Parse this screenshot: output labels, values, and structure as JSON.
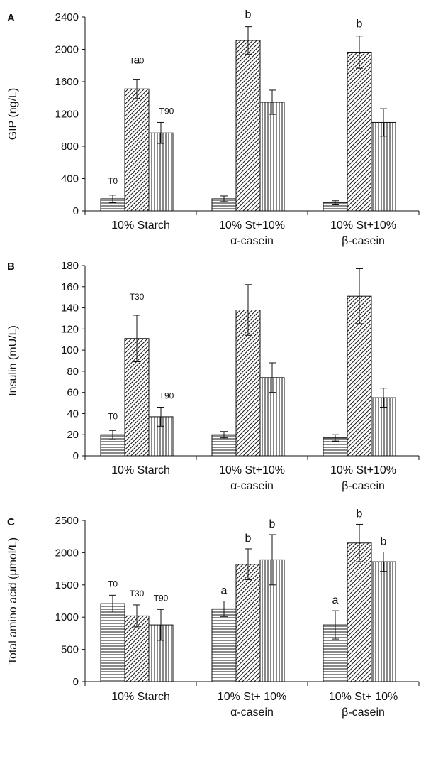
{
  "chart_data": [
    {
      "panel": "A",
      "type": "bar",
      "ylabel": "GIP (ng/L)",
      "ylim": [
        0,
        2400
      ],
      "yticks": [
        0,
        400,
        800,
        1200,
        1600,
        2000,
        2400
      ],
      "categories": [
        [
          "10% Starch"
        ],
        [
          "10% St+10%",
          "α-casein"
        ],
        [
          "10% St+10%",
          "β-casein"
        ]
      ],
      "series": [
        {
          "name": "T0",
          "values": [
            150,
            150,
            100
          ],
          "errors": [
            45,
            35,
            25
          ],
          "pattern": "horizontal"
        },
        {
          "name": "T30",
          "values": [
            1510,
            2110,
            1965
          ],
          "errors": [
            120,
            170,
            200
          ],
          "pattern": "diagonal"
        },
        {
          "name": "T90",
          "values": [
            965,
            1345,
            1095
          ],
          "errors": [
            130,
            150,
            170
          ],
          "pattern": "vertical"
        }
      ],
      "annotations": [
        {
          "category": 0,
          "series": 1,
          "text": "a"
        },
        {
          "category": 1,
          "series": 1,
          "text": "b"
        },
        {
          "category": 2,
          "series": 1,
          "text": "b"
        }
      ],
      "series_labels_category": 0
    },
    {
      "panel": "B",
      "type": "bar",
      "ylabel": "Insulin (mU/L)",
      "ylim": [
        0,
        180
      ],
      "yticks": [
        0,
        20,
        40,
        60,
        80,
        100,
        120,
        140,
        160,
        180
      ],
      "categories": [
        [
          "10% Starch"
        ],
        [
          "10% St+10%",
          "α-casein"
        ],
        [
          "10% St+10%",
          "β-casein"
        ]
      ],
      "series": [
        {
          "name": "T0",
          "values": [
            20,
            20,
            17
          ],
          "errors": [
            4,
            3,
            3
          ],
          "pattern": "horizontal"
        },
        {
          "name": "T30",
          "values": [
            111,
            138,
            151
          ],
          "errors": [
            22,
            24,
            26
          ],
          "pattern": "diagonal"
        },
        {
          "name": "T90",
          "values": [
            37,
            74,
            55
          ],
          "errors": [
            9,
            14,
            9
          ],
          "pattern": "vertical"
        }
      ],
      "annotations": [],
      "series_labels_category": 0
    },
    {
      "panel": "C",
      "type": "bar",
      "ylabel": "Total amino acid (μmol/L)",
      "ylim": [
        0,
        2500
      ],
      "yticks": [
        0,
        500,
        1000,
        1500,
        2000,
        2500
      ],
      "categories": [
        [
          "10% Starch"
        ],
        [
          "10% St+ 10%",
          "α-casein"
        ],
        [
          "10% St+ 10%",
          "β-casein"
        ]
      ],
      "series": [
        {
          "name": "T0",
          "values": [
            1210,
            1130,
            880
          ],
          "errors": [
            130,
            120,
            220
          ],
          "pattern": "horizontal"
        },
        {
          "name": "T30",
          "values": [
            1020,
            1820,
            2150
          ],
          "errors": [
            170,
            240,
            290
          ],
          "pattern": "diagonal"
        },
        {
          "name": "T90",
          "values": [
            880,
            1890,
            1860
          ],
          "errors": [
            240,
            390,
            150
          ],
          "pattern": "vertical"
        }
      ],
      "annotations": [
        {
          "category": 1,
          "series": 0,
          "text": "a"
        },
        {
          "category": 1,
          "series": 1,
          "text": "b"
        },
        {
          "category": 1,
          "series": 2,
          "text": "b"
        },
        {
          "category": 2,
          "series": 0,
          "text": "a"
        },
        {
          "category": 2,
          "series": 1,
          "text": "b"
        },
        {
          "category": 2,
          "series": 2,
          "text": "b"
        }
      ],
      "series_labels_category": 0
    }
  ]
}
